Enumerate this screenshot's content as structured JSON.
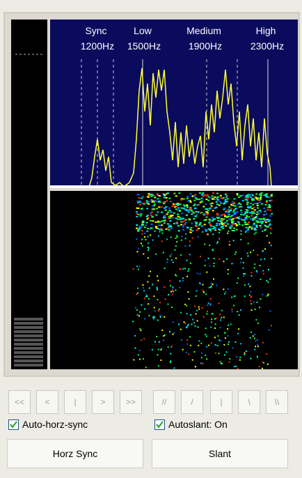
{
  "markers": [
    {
      "name": "Sync",
      "freq": "1200Hz"
    },
    {
      "name": "Low",
      "freq": "1500Hz"
    },
    {
      "name": "Medium",
      "freq": "1900Hz"
    },
    {
      "name": "High",
      "freq": "2300Hz"
    }
  ],
  "sync_buttons": [
    "<<",
    "<",
    "|",
    ">",
    ">>"
  ],
  "slant_buttons": [
    "//",
    "/",
    "|",
    "\\",
    "\\\\"
  ],
  "checkboxes": [
    "Auto-horz-sync",
    "Autoslant: On"
  ],
  "buttons": [
    "Horz Sync",
    "Slant"
  ]
}
